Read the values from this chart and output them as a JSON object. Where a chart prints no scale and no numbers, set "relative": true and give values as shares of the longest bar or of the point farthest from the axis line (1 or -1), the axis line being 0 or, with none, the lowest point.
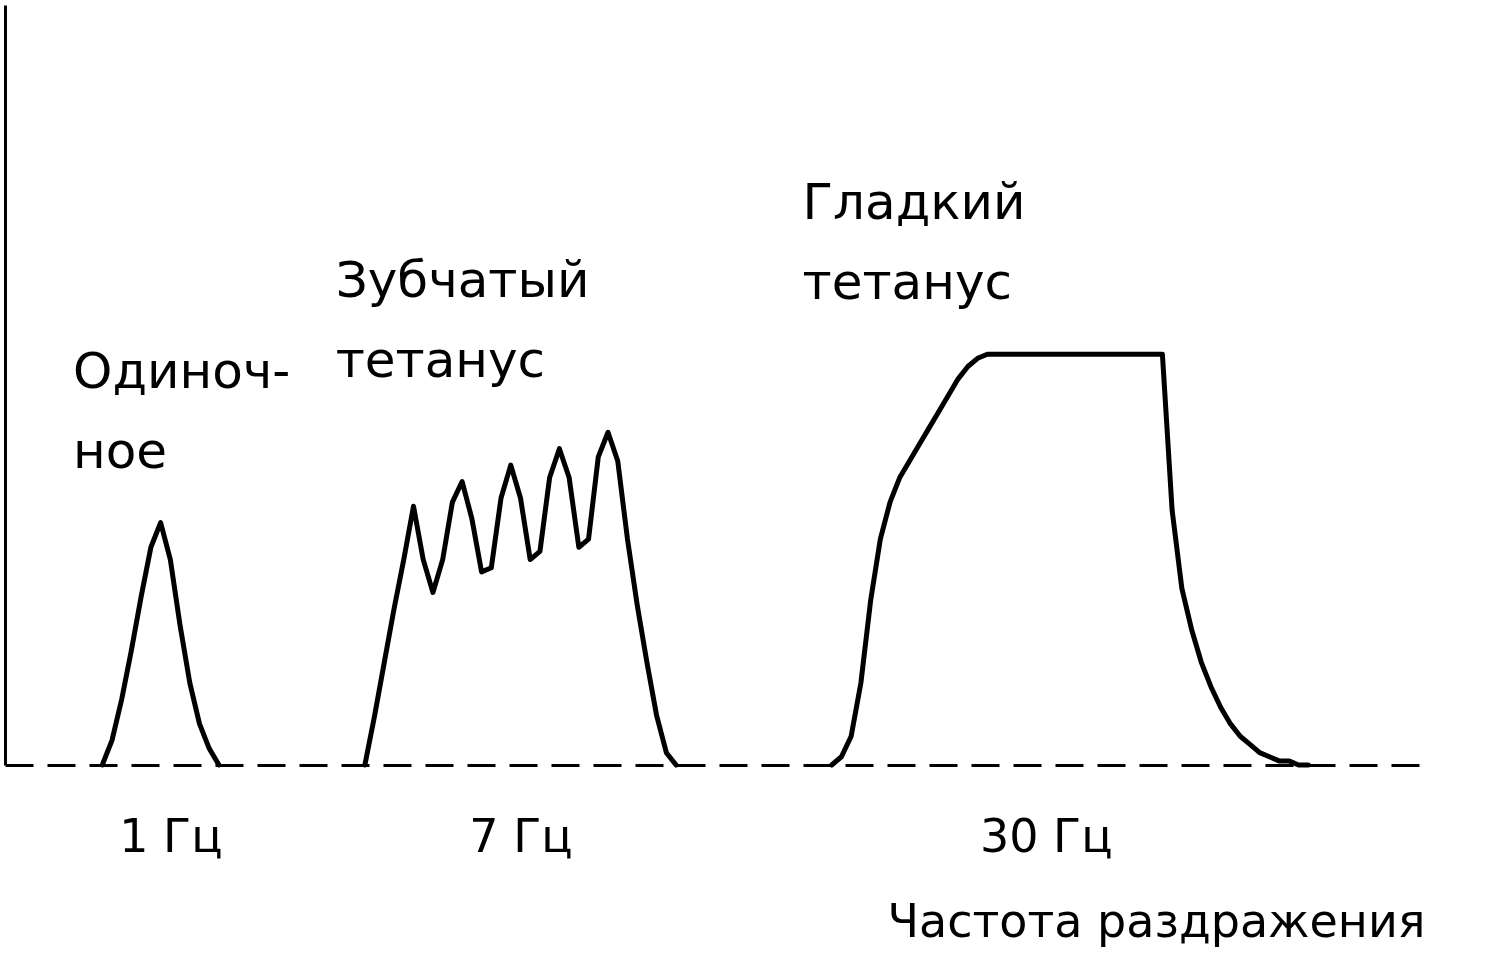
{
  "chart_data": {
    "type": "line",
    "relative": true,
    "xlabel": "Частота раздражения",
    "grid": false,
    "legend": false,
    "line_style": "solid",
    "annotations": [
      "Одиноч-\nное",
      "Зубчатый\nтетанус",
      "Гладкий\nтетанус"
    ],
    "categories": [
      null,
      null,
      null,
      null,
      null,
      null,
      null,
      null,
      null,
      null,
      null,
      null,
      null,
      null,
      null,
      null,
      null,
      "1 Гц",
      null,
      null,
      null,
      null,
      null,
      null,
      null,
      null,
      null,
      null,
      null,
      null,
      null,
      null,
      null,
      null,
      null,
      null,
      null,
      null,
      null,
      null,
      null,
      null,
      null,
      null,
      null,
      null,
      null,
      null,
      null,
      null,
      null,
      null,
      null,
      "7 Гц",
      null,
      null,
      null,
      null,
      null,
      null,
      null,
      null,
      null,
      null,
      null,
      null,
      null,
      null,
      null,
      null,
      null,
      null,
      null,
      null,
      null,
      null,
      null,
      null,
      null,
      null,
      null,
      null,
      null,
      null,
      null,
      null,
      null,
      null,
      null,
      null,
      null,
      null,
      null,
      null,
      null,
      null,
      null,
      null,
      null,
      null,
      null,
      null,
      null,
      null,
      null,
      null,
      null,
      "30 Гц",
      null,
      null,
      null,
      null,
      null,
      null,
      null,
      null,
      null,
      null,
      null,
      null,
      null,
      null,
      null,
      null,
      null,
      null,
      null,
      null,
      null,
      null,
      null,
      null,
      null,
      null,
      null,
      null,
      null,
      null,
      null,
      null,
      null,
      null,
      null,
      null,
      null,
      null,
      null
    ],
    "series": [
      {
        "color": "#000000",
        "values": [
          null,
          null,
          null,
          null,
          null,
          null,
          null,
          null,
          null,
          null,
          0,
          0.06,
          0.16,
          0.28,
          0.41,
          0.53,
          0.59,
          0.5,
          0.34,
          0.2,
          0.1,
          0.04,
          0,
          null,
          null,
          null,
          null,
          null,
          null,
          null,
          null,
          null,
          null,
          null,
          null,
          null,
          null,
          0,
          0.12,
          0.25,
          0.38,
          0.5,
          0.63,
          0.5,
          0.42,
          0.5,
          0.64,
          0.69,
          0.6,
          0.47,
          0.48,
          0.65,
          0.73,
          0.65,
          0.5,
          0.52,
          0.7,
          0.77,
          0.7,
          0.53,
          0.55,
          0.75,
          0.81,
          0.74,
          0.55,
          0.39,
          0.25,
          0.12,
          0.03,
          0,
          null,
          null,
          null,
          null,
          null,
          null,
          null,
          null,
          null,
          null,
          null,
          null,
          null,
          null,
          null,
          0,
          0.02,
          0.07,
          0.2,
          0.4,
          0.55,
          0.64,
          0.7,
          0.74,
          0.78,
          0.82,
          0.86,
          0.9,
          0.94,
          0.97,
          0.99,
          1,
          1,
          1,
          1,
          1,
          1,
          1,
          1,
          1,
          1,
          1,
          1,
          1,
          1,
          1,
          1,
          1,
          1,
          1,
          0.62,
          0.43,
          0.33,
          0.25,
          0.19,
          0.14,
          0.1,
          0.07,
          0.05,
          0.03,
          0.02,
          0.01,
          0.01,
          0,
          0,
          null,
          null,
          null,
          null,
          null,
          null,
          null,
          null,
          null,
          null,
          null,
          null
        ]
      }
    ]
  }
}
